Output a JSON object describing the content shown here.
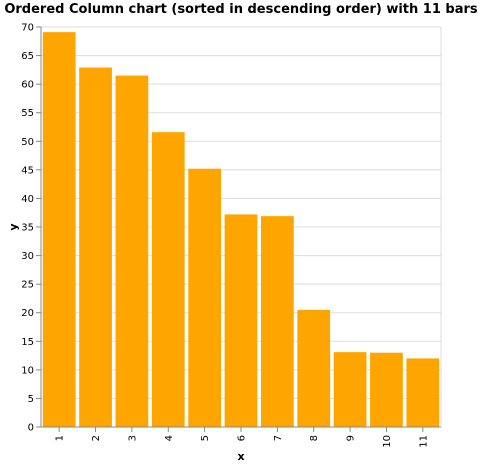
{
  "chart_data": {
    "type": "bar",
    "title": "Ordered Column chart (sorted in descending order) with 11 bars",
    "xlabel": "x",
    "ylabel": "y",
    "categories": [
      "1",
      "2",
      "3",
      "4",
      "5",
      "6",
      "7",
      "8",
      "9",
      "10",
      "11"
    ],
    "values": [
      69.1,
      62.9,
      61.5,
      51.6,
      45.2,
      37.2,
      36.9,
      20.5,
      13.1,
      13.0,
      12.0
    ],
    "ylim": [
      0,
      70
    ],
    "yticks": [
      0,
      5,
      10,
      15,
      20,
      25,
      30,
      35,
      40,
      45,
      50,
      55,
      60,
      65,
      70
    ],
    "grid": true,
    "colors": {
      "bar": "#ffa500",
      "grid": "#dddddd",
      "axis": "#888888"
    }
  }
}
